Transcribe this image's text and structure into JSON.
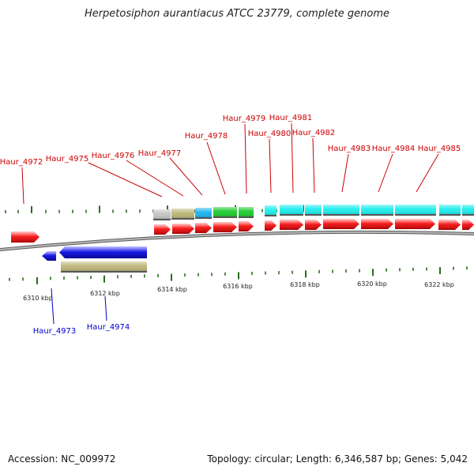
{
  "title": "Herpetosiphon aurantiacus ATCC 23779, complete genome",
  "footer": {
    "accession": "Accession: NC_009972",
    "topology": "Topology: circular; Length: 6,346,587 bp; Genes: 5,042"
  },
  "colors": {
    "forward_gene": "#ee1111",
    "reverse_gene": "#1111dd",
    "forward_label": "#cc0000",
    "reverse_label": "#0000cc",
    "tick": "#2a6e1c",
    "backbone": "#9a9a9a",
    "cog_grey": "#c4c4c4",
    "cog_khaki": "#bdb77a",
    "cog_skyblue": "#1fb4ef",
    "cog_green": "#22cc33",
    "cog_cyan": "#22eeee"
  },
  "scale_labels": [
    "6310 kbp",
    "6312 kbp",
    "6314 kbp",
    "6316 kbp",
    "6318 kbp",
    "6320 kbp",
    "6322 kbp"
  ],
  "forward_genes": [
    {
      "label": "Haur_4972",
      "cog": ""
    },
    {
      "label": "Haur_4975",
      "cog": "cog_grey"
    },
    {
      "label": "Haur_4976",
      "cog": "cog_khaki"
    },
    {
      "label": "Haur_4977",
      "cog": "cog_skyblue"
    },
    {
      "label": "Haur_4978",
      "cog": "cog_green"
    },
    {
      "label": "Haur_4979",
      "cog": "cog_green"
    },
    {
      "label": "Haur_4980",
      "cog": "cog_cyan"
    },
    {
      "label": "Haur_4981",
      "cog": "cog_cyan"
    },
    {
      "label": "Haur_4982",
      "cog": "cog_cyan"
    },
    {
      "label": "Haur_4983",
      "cog": "cog_cyan"
    },
    {
      "label": "Haur_4984",
      "cog": "cog_cyan"
    },
    {
      "label": "Haur_4985",
      "cog": "cog_cyan"
    }
  ],
  "reverse_genes": [
    {
      "label": "Haur_4973",
      "cog": ""
    },
    {
      "label": "Haur_4974",
      "cog": "cog_khaki"
    }
  ]
}
